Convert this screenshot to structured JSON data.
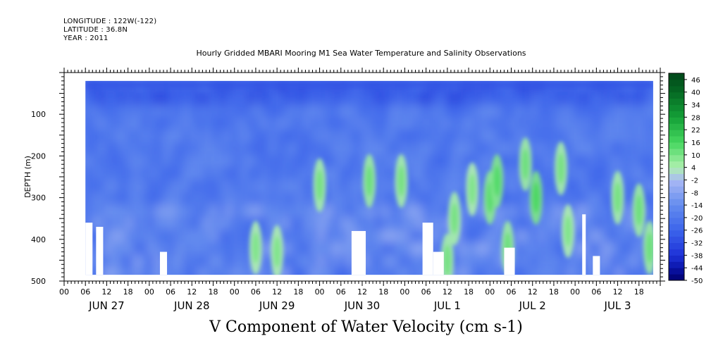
{
  "header": {
    "longitude": "LONGITUDE : 122W(-122)",
    "latitude": "LATITUDE : 36.8N",
    "year": "YEAR : 2011"
  },
  "chart_data": {
    "type": "heatmap",
    "title": "Hourly Gridded MBARI Mooring M1 Sea Water Temperature and Salinity Observations",
    "xlabel": "V Component of Water Velocity (cm s-1)",
    "ylabel": "DEPTH (m)",
    "ylim": [
      500,
      0
    ],
    "yticks": [
      100,
      200,
      300,
      400,
      500
    ],
    "x_hour_ticks": [
      "00",
      "06",
      "12",
      "18",
      "00",
      "06",
      "12",
      "18",
      "00",
      "06",
      "12",
      "18",
      "00",
      "06",
      "12",
      "18",
      "00",
      "06",
      "12",
      "18",
      "00",
      "06",
      "12",
      "18",
      "00",
      "06",
      "12",
      "18"
    ],
    "x_day_labels": [
      "JUN 27",
      "JUN 28",
      "JUN 29",
      "JUN 30",
      "JUL  1",
      "JUL  2",
      "JUL  3"
    ],
    "x_range_hours": [
      0,
      168
    ],
    "data_extent": {
      "start_hour": 6,
      "end_hour": 166,
      "min_depth_m": 20,
      "max_depth_m": 485
    },
    "colorbar": {
      "labels": [
        "46",
        "40",
        "34",
        "28",
        "22",
        "16",
        "10",
        "4",
        "-2",
        "-8",
        "-14",
        "-20",
        "-26",
        "-32",
        "-38",
        "-44",
        "-50"
      ],
      "levels": [
        -50,
        -47,
        -44,
        -41,
        -38,
        -35,
        -32,
        -29,
        -26,
        -23,
        -20,
        -17,
        -14,
        -11,
        -8,
        -5,
        -2,
        1,
        4,
        7,
        10,
        13,
        16,
        19,
        22,
        25,
        28,
        31,
        34,
        37,
        40,
        43,
        46,
        49
      ],
      "range": [
        -50,
        49
      ]
    },
    "positive_patches": [
      {
        "hour": 133,
        "depth": 300,
        "value": 10
      },
      {
        "hour": 120,
        "depth": 300,
        "value": 8
      },
      {
        "hour": 130,
        "depth": 220,
        "value": 6
      },
      {
        "hour": 125,
        "depth": 420,
        "value": 6
      },
      {
        "hour": 122,
        "depth": 260,
        "value": 9
      },
      {
        "hour": 86,
        "depth": 260,
        "value": 6
      },
      {
        "hour": 110,
        "depth": 350,
        "value": 5
      },
      {
        "hour": 140,
        "depth": 230,
        "value": 5
      },
      {
        "hour": 156,
        "depth": 300,
        "value": 5
      },
      {
        "hour": 72,
        "depth": 270,
        "value": 5
      },
      {
        "hour": 60,
        "depth": 430,
        "value": 4
      },
      {
        "hour": 108,
        "depth": 450,
        "value": 5
      },
      {
        "hour": 142,
        "depth": 380,
        "value": 4
      },
      {
        "hour": 95,
        "depth": 260,
        "value": 5
      },
      {
        "hour": 162,
        "depth": 330,
        "value": 6
      },
      {
        "hour": 54,
        "depth": 420,
        "value": 4
      },
      {
        "hour": 115,
        "depth": 280,
        "value": 4
      },
      {
        "hour": 165,
        "depth": 420,
        "value": 6
      }
    ],
    "missing_data": [
      {
        "start_hour": 6,
        "end_hour": 8,
        "min_depth_m": 360,
        "max_depth_m": 485
      },
      {
        "start_hour": 9,
        "end_hour": 11,
        "min_depth_m": 370,
        "max_depth_m": 485
      },
      {
        "start_hour": 27,
        "end_hour": 29,
        "min_depth_m": 430,
        "max_depth_m": 485
      },
      {
        "start_hour": 81,
        "end_hour": 85,
        "min_depth_m": 380,
        "max_depth_m": 485
      },
      {
        "start_hour": 101,
        "end_hour": 104,
        "min_depth_m": 360,
        "max_depth_m": 485
      },
      {
        "start_hour": 104,
        "end_hour": 107,
        "min_depth_m": 430,
        "max_depth_m": 485
      },
      {
        "start_hour": 124,
        "end_hour": 127,
        "min_depth_m": 420,
        "max_depth_m": 485
      },
      {
        "start_hour": 146,
        "end_hour": 147,
        "min_depth_m": 340,
        "max_depth_m": 485
      },
      {
        "start_hour": 149,
        "end_hour": 151,
        "min_depth_m": 440,
        "max_depth_m": 485
      }
    ]
  }
}
